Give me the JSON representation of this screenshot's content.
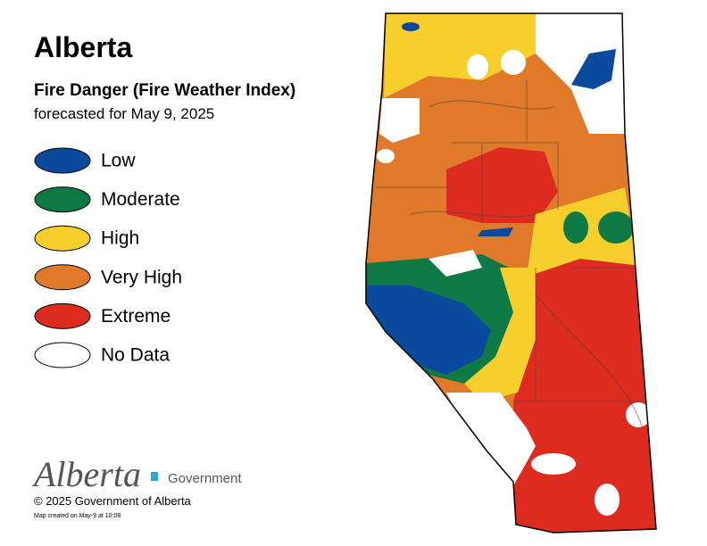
{
  "header": {
    "title": "Alberta",
    "subtitle": "Fire Danger (Fire Weather Index)",
    "date": "forecasted for May 9, 2025"
  },
  "legend": [
    {
      "label": "Low",
      "color": "#0a4a9c"
    },
    {
      "label": "Moderate",
      "color": "#0d7a45"
    },
    {
      "label": "High",
      "color": "#f7cf2c"
    },
    {
      "label": "Very High",
      "color": "#e07a2a"
    },
    {
      "label": "Extreme",
      "color": "#dd2c1f"
    },
    {
      "label": "No Data",
      "color": "#ffffff"
    }
  ],
  "footer": {
    "logo": "Alberta",
    "government": "Government",
    "copyright": "© 2025 Government of Alberta",
    "created": "Map created on May-9 at 10:08"
  }
}
